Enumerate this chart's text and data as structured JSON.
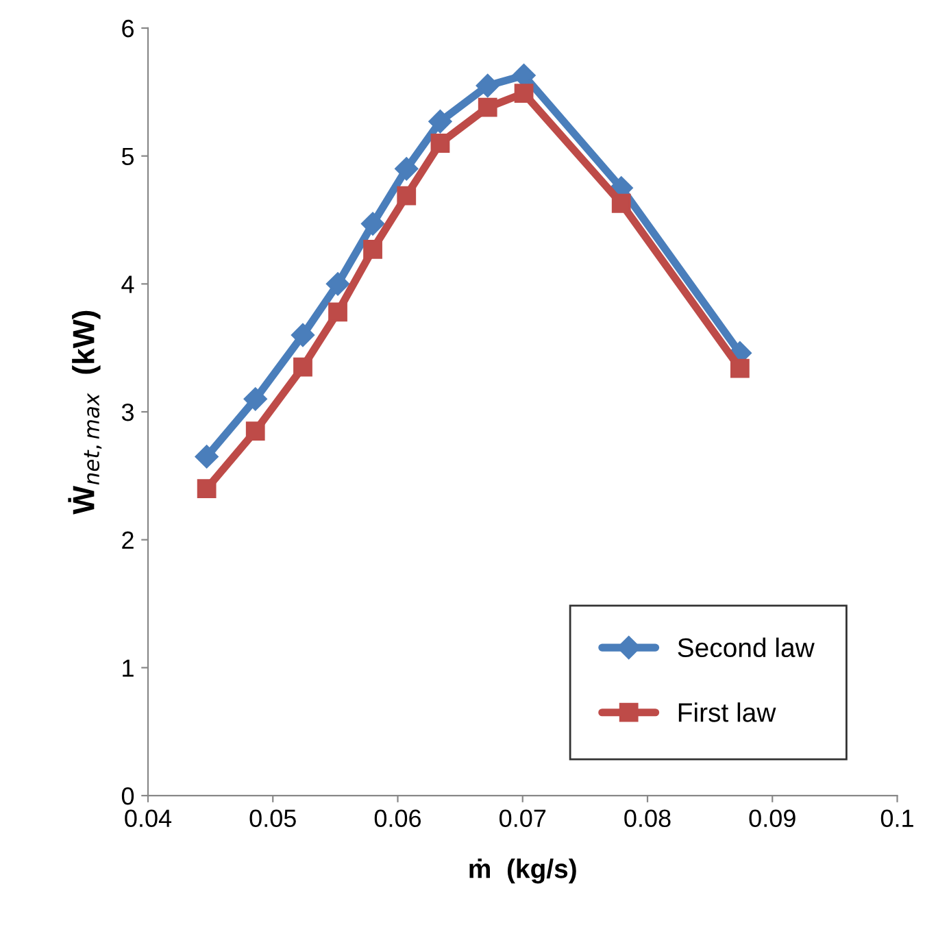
{
  "chart_data": {
    "type": "line",
    "xlabel": "ṁ  (kg/s)",
    "ylabel": "Ẇ$_{net,max}$  (kW)",
    "x": [
      0.0447,
      0.0486,
      0.0524,
      0.0552,
      0.058,
      0.0607,
      0.0634,
      0.0672,
      0.0701,
      0.0779,
      0.0874
    ],
    "series": [
      {
        "name": "Second law",
        "color": "#4a7ebb",
        "marker": "diamond",
        "values": [
          2.65,
          3.1,
          3.6,
          4.0,
          4.47,
          4.9,
          5.27,
          5.55,
          5.63,
          4.75,
          3.46
        ]
      },
      {
        "name": "First law",
        "color": "#be4b48",
        "marker": "square",
        "values": [
          2.4,
          2.85,
          3.35,
          3.78,
          4.27,
          4.69,
          5.1,
          5.38,
          5.49,
          4.63,
          3.34
        ]
      }
    ],
    "xlim": [
      0.04,
      0.1
    ],
    "xticks": [
      0.04,
      0.05,
      0.06,
      0.07,
      0.08,
      0.09,
      0.1
    ],
    "ylim": [
      0,
      6
    ],
    "yticks": [
      0,
      1,
      2,
      3,
      4,
      5,
      6
    ],
    "grid": false,
    "legend": "bottom right",
    "line_style": "solid"
  }
}
